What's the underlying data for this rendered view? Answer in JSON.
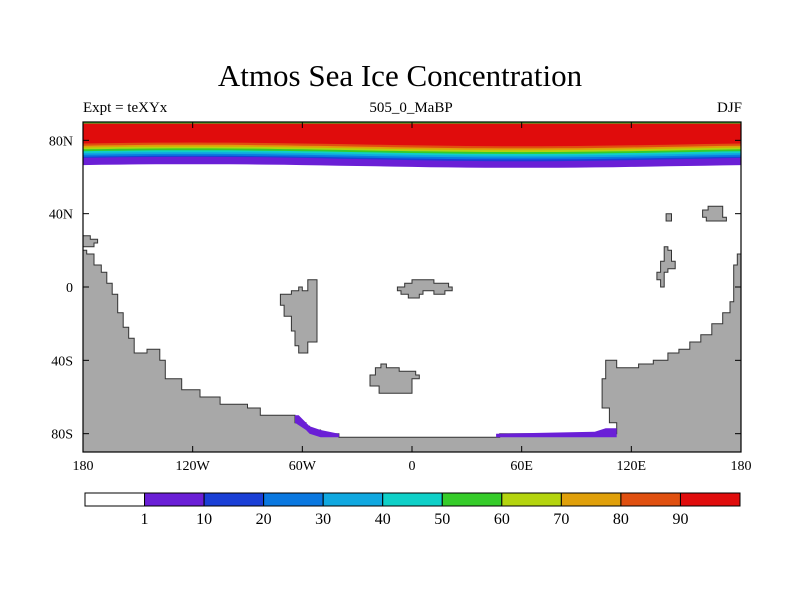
{
  "title": "Atmos Sea Ice Concentration",
  "left_label": "Expt = teXYx",
  "center_label": "505_0_MaBP",
  "right_label": "DJF",
  "colors": {
    "land": "#a8a8a8",
    "coast": "#333333",
    "ice_south": "#6a1fd6"
  },
  "chart_data": {
    "type": "heatmap",
    "title": "Atmos Sea Ice Concentration",
    "xlabel": "",
    "ylabel": "",
    "xlim": [
      -180,
      180
    ],
    "ylim": [
      -90,
      90
    ],
    "x_ticks": [
      {
        "value": -180,
        "label": "180"
      },
      {
        "value": -120,
        "label": "120W"
      },
      {
        "value": -60,
        "label": "60W"
      },
      {
        "value": 0,
        "label": "0"
      },
      {
        "value": 60,
        "label": "60E"
      },
      {
        "value": 120,
        "label": "120E"
      },
      {
        "value": 180,
        "label": "180"
      }
    ],
    "y_ticks": [
      {
        "value": 80,
        "label": "80N"
      },
      {
        "value": 40,
        "label": "40N"
      },
      {
        "value": 0,
        "label": "0"
      },
      {
        "value": -40,
        "label": "40S"
      },
      {
        "value": -80,
        "label": "80S"
      }
    ],
    "colorbar": {
      "levels": [
        1,
        10,
        20,
        30,
        40,
        50,
        60,
        70,
        80,
        90
      ],
      "colors": [
        "#ffffff",
        "#6a1fd6",
        "#1a3fd6",
        "#0a78e0",
        "#10a8e0",
        "#0fd0c8",
        "#36cc2a",
        "#b4d40e",
        "#e0a00a",
        "#e05010",
        "#e00c0c"
      ]
    },
    "north_ice_bands": [
      {
        "level": 90,
        "lat_top": 89.2,
        "lat_bottom_min": 78.8,
        "lat_bottom_max": 76.8
      },
      {
        "level": 80,
        "lat_bottom_min": 77.6,
        "lat_bottom_max": 75.6
      },
      {
        "level": 70,
        "lat_bottom_min": 76.6,
        "lat_bottom_max": 74.6
      },
      {
        "level": 60,
        "lat_bottom_min": 75.6,
        "lat_bottom_max": 73.6
      },
      {
        "level": 50,
        "lat_bottom_min": 74.6,
        "lat_bottom_max": 72.6
      },
      {
        "level": 40,
        "lat_bottom_min": 73.6,
        "lat_bottom_max": 71.6
      },
      {
        "level": 30,
        "lat_bottom_min": 72.6,
        "lat_bottom_max": 70.6
      },
      {
        "level": 20,
        "lat_bottom_min": 71.6,
        "lat_bottom_max": 69.6
      },
      {
        "level": 10,
        "lat_bottom_min": 71.0,
        "lat_bottom_max": 68.6
      },
      {
        "level": 1,
        "lat_bottom_min": 67.0,
        "lat_bottom_max": 65.0
      }
    ],
    "top_edge_band": {
      "level": 50,
      "lat_top": 90,
      "lat_bottom": 89.2
    },
    "land_polygons": [
      {
        "name": "western-continent",
        "points": [
          [
            -180,
            -90
          ],
          [
            -180,
            20
          ],
          [
            -178,
            20
          ],
          [
            -178,
            18
          ],
          [
            -174,
            18
          ],
          [
            -174,
            12
          ],
          [
            -170,
            12
          ],
          [
            -170,
            8
          ],
          [
            -167,
            8
          ],
          [
            -167,
            2
          ],
          [
            -164,
            2
          ],
          [
            -164,
            -4
          ],
          [
            -161,
            -4
          ],
          [
            -161,
            -14
          ],
          [
            -158,
            -14
          ],
          [
            -158,
            -22
          ],
          [
            -155,
            -22
          ],
          [
            -155,
            -28
          ],
          [
            -152,
            -28
          ],
          [
            -152,
            -36
          ],
          [
            -145,
            -36
          ],
          [
            -145,
            -34
          ],
          [
            -138,
            -34
          ],
          [
            -138,
            -40
          ],
          [
            -135,
            -40
          ],
          [
            -135,
            -50
          ],
          [
            -126,
            -50
          ],
          [
            -126,
            -56
          ],
          [
            -116,
            -56
          ],
          [
            -116,
            -60
          ],
          [
            -105,
            -60
          ],
          [
            -105,
            -64
          ],
          [
            -90,
            -64
          ],
          [
            -90,
            -66
          ],
          [
            -83,
            -66
          ],
          [
            -83,
            -70
          ],
          [
            -64,
            -70
          ],
          [
            -64,
            -74
          ],
          [
            -58,
            -74
          ],
          [
            -58,
            -76
          ],
          [
            -56,
            -76
          ],
          [
            -56,
            -78
          ],
          [
            -50,
            -78
          ],
          [
            -50,
            -80
          ],
          [
            -40,
            -80
          ],
          [
            -40,
            -82
          ],
          [
            48,
            -82
          ],
          [
            48,
            -80
          ],
          [
            112,
            -80
          ],
          [
            112,
            -74
          ],
          [
            108,
            -74
          ],
          [
            108,
            -66
          ],
          [
            104,
            -66
          ],
          [
            104,
            -50
          ],
          [
            106,
            -50
          ],
          [
            106,
            -40
          ],
          [
            112,
            -40
          ],
          [
            112,
            -44
          ],
          [
            124,
            -44
          ],
          [
            124,
            -42
          ],
          [
            132,
            -42
          ],
          [
            132,
            -40
          ],
          [
            140,
            -40
          ],
          [
            140,
            -36
          ],
          [
            146,
            -36
          ],
          [
            146,
            -34
          ],
          [
            152,
            -34
          ],
          [
            152,
            -30
          ],
          [
            158,
            -30
          ],
          [
            158,
            -26
          ],
          [
            164,
            -26
          ],
          [
            164,
            -20
          ],
          [
            170,
            -20
          ],
          [
            170,
            -14
          ],
          [
            174,
            -14
          ],
          [
            174,
            -8
          ],
          [
            176,
            -8
          ],
          [
            176,
            12
          ],
          [
            178,
            12
          ],
          [
            178,
            18
          ],
          [
            180,
            18
          ],
          [
            180,
            -90
          ]
        ]
      },
      {
        "name": "north-west-islet",
        "points": [
          [
            -180,
            28
          ],
          [
            -176,
            28
          ],
          [
            -176,
            26
          ],
          [
            -172,
            26
          ],
          [
            -172,
            24
          ],
          [
            -174,
            24
          ],
          [
            -174,
            22
          ],
          [
            -180,
            22
          ]
        ]
      },
      {
        "name": "tropical-island-west",
        "points": [
          [
            -70,
            -12
          ],
          [
            -70,
            -10
          ],
          [
            -72,
            -10
          ],
          [
            -72,
            -4
          ],
          [
            -66,
            -4
          ],
          [
            -66,
            -2
          ],
          [
            -62,
            -2
          ],
          [
            -62,
            0
          ],
          [
            -60,
            0
          ],
          [
            -60,
            -2
          ],
          [
            -57,
            -2
          ],
          [
            -57,
            4
          ],
          [
            -52,
            4
          ],
          [
            -52,
            -30
          ],
          [
            -57,
            -30
          ],
          [
            -57,
            -36
          ],
          [
            -62,
            -36
          ],
          [
            -62,
            -32
          ],
          [
            -64,
            -32
          ],
          [
            -64,
            -24
          ],
          [
            -66,
            -24
          ],
          [
            -66,
            -16
          ],
          [
            -70,
            -16
          ]
        ]
      },
      {
        "name": "equatorial-island",
        "points": [
          [
            -8,
            0
          ],
          [
            -8,
            -2
          ],
          [
            -6,
            -2
          ],
          [
            -6,
            -4
          ],
          [
            -2,
            -4
          ],
          [
            -2,
            -6
          ],
          [
            4,
            -6
          ],
          [
            4,
            -4
          ],
          [
            6,
            -4
          ],
          [
            6,
            -2
          ],
          [
            12,
            -2
          ],
          [
            12,
            -4
          ],
          [
            18,
            -4
          ],
          [
            18,
            -2
          ],
          [
            22,
            -2
          ],
          [
            22,
            0
          ],
          [
            20,
            0
          ],
          [
            20,
            2
          ],
          [
            12,
            2
          ],
          [
            12,
            4
          ],
          [
            0,
            4
          ],
          [
            0,
            2
          ],
          [
            -4,
            2
          ],
          [
            -4,
            0
          ]
        ]
      },
      {
        "name": "southern-island",
        "points": [
          [
            -23,
            -52
          ],
          [
            -23,
            -48
          ],
          [
            -20,
            -48
          ],
          [
            -20,
            -44
          ],
          [
            -17,
            -44
          ],
          [
            -17,
            -42
          ],
          [
            -14,
            -42
          ],
          [
            -14,
            -44
          ],
          [
            -7,
            -44
          ],
          [
            -7,
            -46
          ],
          [
            2,
            -46
          ],
          [
            2,
            -48
          ],
          [
            4,
            -48
          ],
          [
            4,
            -50
          ],
          [
            0,
            -50
          ],
          [
            0,
            -58
          ],
          [
            -18,
            -58
          ],
          [
            -18,
            -54
          ],
          [
            -23,
            -54
          ]
        ]
      },
      {
        "name": "east-island-large",
        "points": [
          [
            138,
            22
          ],
          [
            140,
            22
          ],
          [
            140,
            20
          ],
          [
            142,
            20
          ],
          [
            142,
            14
          ],
          [
            144,
            14
          ],
          [
            144,
            10
          ],
          [
            140,
            10
          ],
          [
            140,
            8
          ],
          [
            138,
            8
          ],
          [
            138,
            0
          ],
          [
            136,
            0
          ],
          [
            136,
            4
          ],
          [
            134,
            4
          ],
          [
            134,
            8
          ],
          [
            136,
            8
          ],
          [
            136,
            14
          ],
          [
            138,
            14
          ]
        ]
      },
      {
        "name": "east-islet-small",
        "points": [
          [
            139,
            40
          ],
          [
            139,
            36
          ],
          [
            142,
            36
          ],
          [
            142,
            40
          ]
        ]
      },
      {
        "name": "east-islet-ne",
        "points": [
          [
            159,
            42
          ],
          [
            159,
            38
          ],
          [
            161,
            38
          ],
          [
            161,
            36
          ],
          [
            172,
            36
          ],
          [
            172,
            38
          ],
          [
            170,
            38
          ],
          [
            170,
            44
          ],
          [
            162,
            44
          ],
          [
            162,
            42
          ]
        ]
      }
    ],
    "south_ice_polygons": [
      {
        "points": [
          [
            -64,
            -70
          ],
          [
            -62,
            -70
          ],
          [
            -56,
            -76
          ],
          [
            -50,
            -78
          ],
          [
            -40,
            -80
          ],
          [
            -40,
            -82
          ],
          [
            -50,
            -82
          ],
          [
            -56,
            -80
          ],
          [
            -58,
            -78
          ],
          [
            -64,
            -74
          ]
        ]
      },
      {
        "points": [
          [
            46,
            -80
          ],
          [
            46,
            -82
          ],
          [
            112,
            -82
          ],
          [
            112,
            -77
          ],
          [
            106,
            -77
          ],
          [
            100,
            -79
          ]
        ]
      }
    ]
  }
}
